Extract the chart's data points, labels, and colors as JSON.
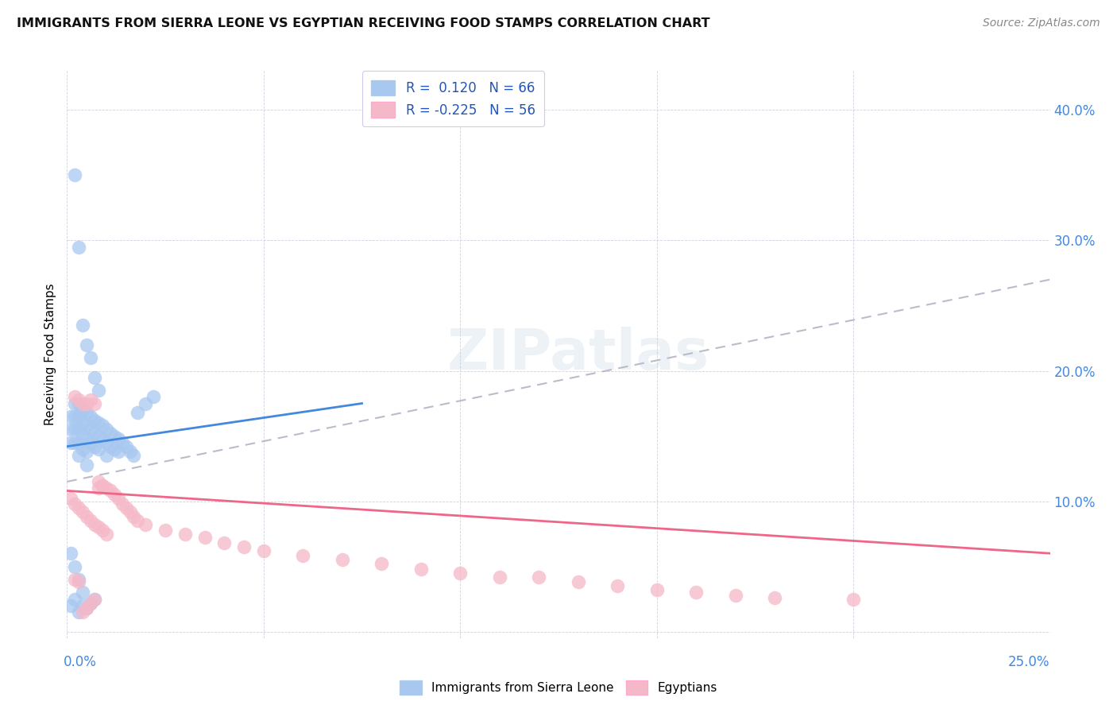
{
  "title": "IMMIGRANTS FROM SIERRA LEONE VS EGYPTIAN RECEIVING FOOD STAMPS CORRELATION CHART",
  "source": "Source: ZipAtlas.com",
  "ylabel": "Receiving Food Stamps",
  "xlim": [
    0.0,
    0.25
  ],
  "ylim": [
    -0.005,
    0.43
  ],
  "blue_color": "#A8C8F0",
  "pink_color": "#F5B8C8",
  "trend_blue": "#4488DD",
  "trend_pink": "#EE6688",
  "trend_dashed_color": "#BBBBCC",
  "background": "#FFFFFF",
  "label_color": "#4488DD",
  "sl_x": [
    0.001,
    0.001,
    0.001,
    0.002,
    0.002,
    0.002,
    0.002,
    0.003,
    0.003,
    0.003,
    0.003,
    0.003,
    0.004,
    0.004,
    0.004,
    0.004,
    0.005,
    0.005,
    0.005,
    0.005,
    0.005,
    0.006,
    0.006,
    0.006,
    0.007,
    0.007,
    0.007,
    0.008,
    0.008,
    0.008,
    0.009,
    0.009,
    0.01,
    0.01,
    0.01,
    0.011,
    0.011,
    0.012,
    0.012,
    0.013,
    0.013,
    0.014,
    0.015,
    0.016,
    0.017,
    0.018,
    0.02,
    0.022,
    0.002,
    0.003,
    0.004,
    0.005,
    0.006,
    0.007,
    0.008,
    0.001,
    0.002,
    0.003,
    0.004,
    0.005,
    0.006,
    0.007,
    0.001,
    0.002,
    0.003,
    0.004
  ],
  "sl_y": [
    0.165,
    0.155,
    0.145,
    0.175,
    0.165,
    0.155,
    0.145,
    0.175,
    0.165,
    0.155,
    0.145,
    0.135,
    0.17,
    0.16,
    0.15,
    0.14,
    0.168,
    0.158,
    0.148,
    0.138,
    0.128,
    0.165,
    0.155,
    0.145,
    0.162,
    0.152,
    0.142,
    0.16,
    0.15,
    0.14,
    0.158,
    0.148,
    0.155,
    0.145,
    0.135,
    0.152,
    0.142,
    0.15,
    0.14,
    0.148,
    0.138,
    0.145,
    0.142,
    0.138,
    0.135,
    0.168,
    0.175,
    0.18,
    0.35,
    0.295,
    0.235,
    0.22,
    0.21,
    0.195,
    0.185,
    0.02,
    0.025,
    0.015,
    0.02,
    0.018,
    0.022,
    0.025,
    0.06,
    0.05,
    0.04,
    0.03
  ],
  "eg_x": [
    0.001,
    0.002,
    0.002,
    0.003,
    0.003,
    0.004,
    0.004,
    0.005,
    0.005,
    0.006,
    0.006,
    0.007,
    0.007,
    0.008,
    0.008,
    0.009,
    0.009,
    0.01,
    0.01,
    0.011,
    0.012,
    0.013,
    0.014,
    0.015,
    0.016,
    0.017,
    0.018,
    0.02,
    0.025,
    0.03,
    0.035,
    0.04,
    0.045,
    0.05,
    0.06,
    0.07,
    0.08,
    0.09,
    0.1,
    0.11,
    0.12,
    0.13,
    0.14,
    0.15,
    0.16,
    0.17,
    0.18,
    0.2,
    0.002,
    0.003,
    0.004,
    0.005,
    0.006,
    0.007,
    0.008,
    0.009
  ],
  "eg_y": [
    0.102,
    0.18,
    0.098,
    0.178,
    0.095,
    0.175,
    0.092,
    0.175,
    0.088,
    0.178,
    0.085,
    0.175,
    0.082,
    0.115,
    0.08,
    0.112,
    0.078,
    0.11,
    0.075,
    0.108,
    0.105,
    0.102,
    0.098,
    0.095,
    0.092,
    0.088,
    0.085,
    0.082,
    0.078,
    0.075,
    0.072,
    0.068,
    0.065,
    0.062,
    0.058,
    0.055,
    0.052,
    0.048,
    0.045,
    0.042,
    0.042,
    0.038,
    0.035,
    0.032,
    0.03,
    0.028,
    0.026,
    0.025,
    0.04,
    0.038,
    0.015,
    0.018,
    0.022,
    0.025,
    0.11,
    0.112
  ]
}
